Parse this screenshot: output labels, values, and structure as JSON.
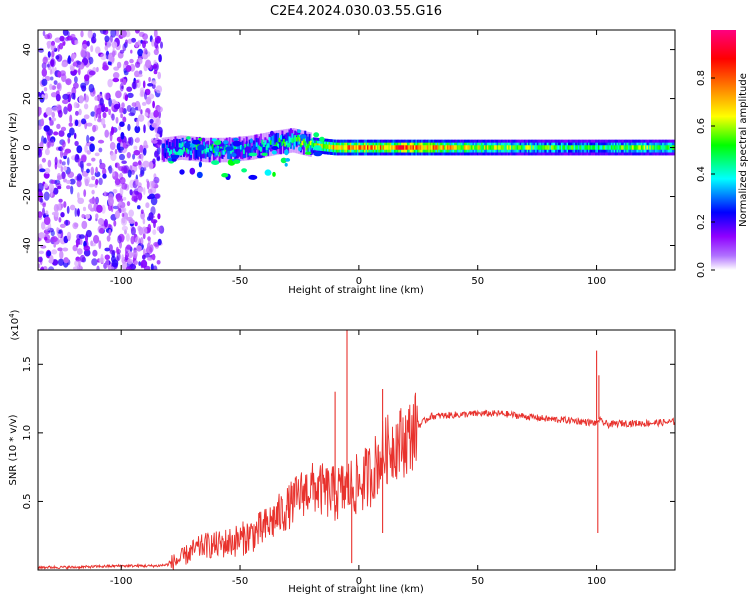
{
  "figure_title": "C2E4.2024.030.03.55.G16",
  "chart_data": [
    {
      "type": "heatmap",
      "xlabel": "Height of straight line (km)",
      "ylabel": "Frequency (Hz)",
      "xlim": [
        -135,
        133
      ],
      "ylim": [
        -50,
        48
      ],
      "xticks": [
        -100,
        -50,
        0,
        50,
        100
      ],
      "xtick_labels": [
        "-100",
        "-50",
        "0",
        "50",
        "100"
      ],
      "yticks": [
        -40,
        -20,
        0,
        20,
        40
      ],
      "ytick_labels": [
        "-40",
        "-20",
        "0",
        "20",
        "40"
      ],
      "colorbar": {
        "label": "Normalized spectral amplitude",
        "range": [
          0,
          1
        ],
        "ticks": [
          0.0,
          0.2,
          0.4,
          0.6,
          0.8
        ],
        "tick_labels": [
          "0.0",
          "0.2",
          "0.4",
          "0.6",
          "0.8"
        ],
        "colors": [
          "#ffffff",
          "#8f00ff",
          "#0000ff",
          "#00ffff",
          "#00ff00",
          "#ffff00",
          "#ff8000",
          "#ff0000",
          "#ff0080"
        ]
      },
      "noise_region_x": [
        -135,
        -83
      ],
      "signal_ridge": [
        {
          "x": -83,
          "y": -1,
          "amp": 0.3
        },
        {
          "x": -75,
          "y": 0,
          "amp": 0.4
        },
        {
          "x": -65,
          "y": -1,
          "amp": 0.45
        },
        {
          "x": -55,
          "y": -1,
          "amp": 0.4
        },
        {
          "x": -45,
          "y": 0,
          "amp": 0.35
        },
        {
          "x": -35,
          "y": 2,
          "amp": 0.45
        },
        {
          "x": -28,
          "y": 3,
          "amp": 0.5
        },
        {
          "x": -20,
          "y": 1,
          "amp": 0.6
        },
        {
          "x": -10,
          "y": 0,
          "amp": 0.75
        },
        {
          "x": 0,
          "y": 0,
          "amp": 0.8
        },
        {
          "x": 10,
          "y": 0,
          "amp": 0.7
        },
        {
          "x": 20,
          "y": 0,
          "amp": 0.85
        },
        {
          "x": 40,
          "y": 0,
          "amp": 0.65
        },
        {
          "x": 60,
          "y": 0,
          "amp": 0.55
        },
        {
          "x": 80,
          "y": 0,
          "amp": 0.5
        },
        {
          "x": 98,
          "y": 0,
          "amp": 0.45
        },
        {
          "x": 110,
          "y": 0,
          "amp": 0.55
        },
        {
          "x": 133,
          "y": 0,
          "amp": 0.5
        }
      ]
    },
    {
      "type": "line",
      "xlabel": "Height of straight line (km)",
      "ylabel": "SNR (10 * v/v)",
      "y_multiplier_label": "(x10",
      "y_multiplier_exp": "4",
      "y_multiplier_close": ")",
      "xlim": [
        -135,
        133
      ],
      "ylim": [
        0,
        1.75
      ],
      "xticks": [
        -100,
        -50,
        0,
        50,
        100
      ],
      "xtick_labels": [
        "-100",
        "-50",
        "0",
        "50",
        "100"
      ],
      "yticks": [
        0.5,
        1.0,
        1.5
      ],
      "ytick_labels": [
        "0.5",
        "1.0",
        "1.5"
      ],
      "line_color": "#e8322d",
      "series": [
        {
          "x": [
            -135,
            -120,
            -100,
            -85,
            -80,
            -75,
            -70,
            -65,
            -60,
            -55,
            -50,
            -45,
            -40,
            -35,
            -30,
            -25,
            -20,
            -15,
            -10,
            -5,
            0,
            5,
            10,
            15,
            20,
            25,
            30,
            40,
            50,
            60,
            70,
            80,
            90,
            95,
            100,
            101,
            102,
            105,
            110,
            120,
            133
          ],
          "y": [
            0.02,
            0.02,
            0.03,
            0.03,
            0.04,
            0.08,
            0.14,
            0.18,
            0.18,
            0.2,
            0.22,
            0.26,
            0.3,
            0.38,
            0.45,
            0.55,
            0.6,
            0.58,
            0.55,
            0.6,
            0.62,
            0.7,
            0.85,
            0.92,
            0.95,
            1.05,
            1.12,
            1.13,
            1.14,
            1.14,
            1.12,
            1.1,
            1.09,
            1.08,
            1.07,
            1.1,
            1.08,
            1.06,
            1.07,
            1.07,
            1.08
          ]
        }
      ],
      "spikes": [
        {
          "x": -10,
          "y": 1.3
        },
        {
          "x": -5,
          "y": 1.75
        },
        {
          "x": 10,
          "y": 1.32
        },
        {
          "x": 100,
          "y": 1.6
        },
        {
          "x": 101,
          "y": 1.42
        },
        {
          "x": 100.5,
          "y": 0.27
        },
        {
          "x": -3,
          "y": 0.05
        },
        {
          "x": 10,
          "y": 0.27
        }
      ]
    }
  ]
}
